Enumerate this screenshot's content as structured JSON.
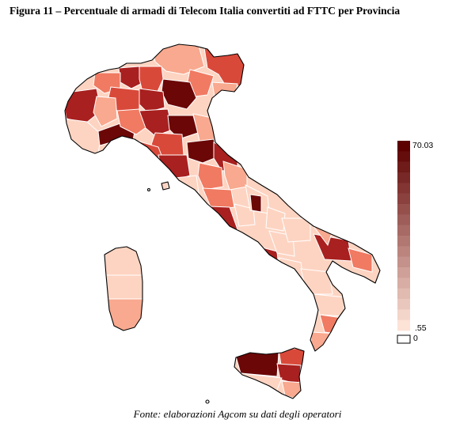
{
  "figure": {
    "title": "Figura 11 – Percentuale di armadi di Telecom Italia convertiti ad FTTC per Provincia",
    "source": "Fonte: elaborazioni Agcom su dati degli operatori"
  },
  "legend": {
    "max_label": "70.03",
    "min_label": ".55",
    "zero_label": "0",
    "color_low": "#fde2d6",
    "color_high": "#5c0000",
    "zero_color": "#ffffff",
    "steps": 18
  },
  "map": {
    "country": "Italia",
    "region_colors": {
      "very_dark": "#6b0707",
      "dark": "#a8201f",
      "medium": "#d9493a",
      "mid_light": "#f07a62",
      "light": "#f8a98f",
      "pale": "#fdd4c2",
      "outline": "#000000",
      "province_border": "#ffffff"
    }
  }
}
